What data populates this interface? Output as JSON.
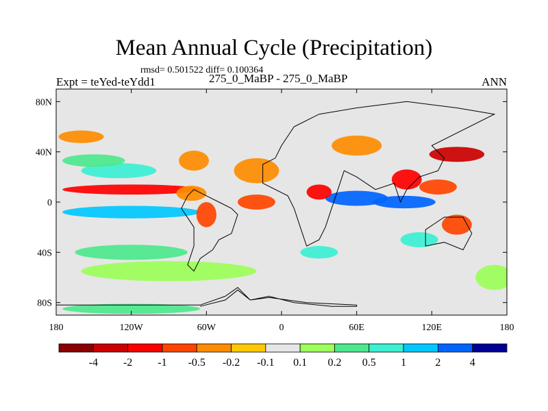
{
  "chart_data": {
    "type": "heatmap",
    "title": "Mean Annual Cycle (Precipitation)",
    "stats_line": "rmsd= 0.501522 diff= 0.100364",
    "left_label": "Expt = teYed-teYdd1",
    "center_label": "275_0_MaBP - 275_0_MaBP",
    "right_label": "ANN",
    "x_range": [
      -180,
      180
    ],
    "y_range": [
      -90,
      90
    ],
    "x_ticks": [
      {
        "value": -180,
        "label": "180"
      },
      {
        "value": -120,
        "label": "120W"
      },
      {
        "value": -60,
        "label": "60W"
      },
      {
        "value": 0,
        "label": "0"
      },
      {
        "value": 60,
        "label": "60E"
      },
      {
        "value": 120,
        "label": "120E"
      },
      {
        "value": 180,
        "label": "180"
      }
    ],
    "y_ticks": [
      {
        "value": 80,
        "label": "80N"
      },
      {
        "value": 40,
        "label": "40N"
      },
      {
        "value": 0,
        "label": "0"
      },
      {
        "value": -40,
        "label": "40S"
      },
      {
        "value": -80,
        "label": "80S"
      }
    ],
    "colorbar": {
      "colors": [
        "#8b0000",
        "#cc0000",
        "#ff0000",
        "#ff4500",
        "#ff8c00",
        "#ffc800",
        "#e6e6e6",
        "#9cff5a",
        "#4de88c",
        "#3cf0d2",
        "#00c8ff",
        "#0064ff",
        "#000096"
      ],
      "labels": [
        "-4",
        "-2",
        "-1",
        "-0.5",
        "-0.2",
        "-0.1",
        "0.1",
        "0.2",
        "0.5",
        "1",
        "2",
        "4"
      ]
    },
    "features": [
      {
        "lon": -120,
        "lat": 10,
        "rlon": 55,
        "rlat": 4,
        "level": 2
      },
      {
        "lon": -120,
        "lat": -8,
        "rlon": 55,
        "rlat": 5,
        "level": 10
      },
      {
        "lon": -130,
        "lat": 25,
        "rlon": 30,
        "rlat": 6,
        "level": 9
      },
      {
        "lon": -150,
        "lat": 33,
        "rlon": 25,
        "rlat": 5,
        "level": 8
      },
      {
        "lon": -70,
        "lat": 33,
        "rlon": 12,
        "rlat": 8,
        "level": 4
      },
      {
        "lon": -72,
        "lat": 7,
        "rlon": 12,
        "rlat": 6,
        "level": 4
      },
      {
        "lon": -60,
        "lat": -10,
        "rlon": 8,
        "rlat": 10,
        "level": 3
      },
      {
        "lon": -20,
        "lat": 25,
        "rlon": 18,
        "rlat": 10,
        "level": 4
      },
      {
        "lon": -20,
        "lat": 0,
        "rlon": 15,
        "rlat": 6,
        "level": 3
      },
      {
        "lon": 60,
        "lat": 3,
        "rlon": 25,
        "rlat": 6,
        "level": 11
      },
      {
        "lon": 98,
        "lat": 0,
        "rlon": 25,
        "rlat": 5,
        "level": 11
      },
      {
        "lon": 140,
        "lat": 38,
        "rlon": 22,
        "rlat": 6,
        "level": 1
      },
      {
        "lon": 100,
        "lat": 18,
        "rlon": 12,
        "rlat": 8,
        "level": 2
      },
      {
        "lon": 125,
        "lat": 12,
        "rlon": 15,
        "rlat": 6,
        "level": 3
      },
      {
        "lon": 30,
        "lat": 8,
        "rlon": 10,
        "rlat": 6,
        "level": 2
      },
      {
        "lon": 140,
        "lat": -18,
        "rlon": 12,
        "rlat": 8,
        "level": 3
      },
      {
        "lon": 110,
        "lat": -30,
        "rlon": 15,
        "rlat": 6,
        "level": 9
      },
      {
        "lon": -120,
        "lat": -40,
        "rlon": 45,
        "rlat": 6,
        "level": 8
      },
      {
        "lon": -90,
        "lat": -55,
        "rlon": 70,
        "rlat": 8,
        "level": 7
      },
      {
        "lon": -120,
        "lat": -85,
        "rlon": 55,
        "rlat": 4,
        "level": 8
      },
      {
        "lon": 60,
        "lat": 45,
        "rlon": 20,
        "rlat": 8,
        "level": 4
      },
      {
        "lon": -160,
        "lat": 52,
        "rlon": 18,
        "rlat": 5,
        "level": 4
      },
      {
        "lon": 30,
        "lat": -40,
        "rlon": 15,
        "rlat": 5,
        "level": 9
      },
      {
        "lon": 170,
        "lat": -60,
        "rlon": 15,
        "rlat": 10,
        "level": 7
      }
    ],
    "coastline": [
      [
        -65,
        -83
      ],
      [
        -45,
        -78
      ],
      [
        -35,
        -70
      ],
      [
        -25,
        -78
      ],
      [
        -10,
        -75
      ],
      [
        10,
        -80
      ],
      [
        40,
        -83
      ],
      [
        60,
        -83
      ],
      [
        60,
        -82
      ],
      [
        20,
        -80
      ],
      [
        -10,
        -76
      ],
      [
        -25,
        -78
      ],
      [
        -35,
        -68
      ],
      [
        -45,
        -75
      ],
      [
        -65,
        -82
      ],
      [
        -180,
        -82
      ]
    ],
    "americas": [
      [
        -70,
        10
      ],
      [
        -60,
        5
      ],
      [
        -50,
        0
      ],
      [
        -40,
        -5
      ],
      [
        -35,
        -10
      ],
      [
        -40,
        -25
      ],
      [
        -50,
        -30
      ],
      [
        -55,
        -38
      ],
      [
        -65,
        -45
      ],
      [
        -70,
        -55
      ],
      [
        -75,
        -50
      ],
      [
        -70,
        -35
      ],
      [
        -70,
        -20
      ],
      [
        -80,
        -5
      ],
      [
        -75,
        5
      ]
    ],
    "landmass": [
      [
        10,
        60
      ],
      [
        30,
        70
      ],
      [
        60,
        75
      ],
      [
        100,
        80
      ],
      [
        140,
        75
      ],
      [
        170,
        70
      ],
      [
        120,
        45
      ],
      [
        130,
        35
      ],
      [
        125,
        25
      ],
      [
        110,
        20
      ],
      [
        100,
        10
      ],
      [
        95,
        0
      ],
      [
        90,
        15
      ],
      [
        75,
        10
      ],
      [
        60,
        20
      ],
      [
        50,
        25
      ],
      [
        45,
        10
      ],
      [
        40,
        -5
      ],
      [
        35,
        -20
      ],
      [
        30,
        -30
      ],
      [
        20,
        -35
      ],
      [
        15,
        -20
      ],
      [
        10,
        -5
      ],
      [
        5,
        5
      ],
      [
        -15,
        15
      ],
      [
        -15,
        30
      ],
      [
        -5,
        35
      ],
      [
        0,
        45
      ]
    ],
    "australia": [
      [
        115,
        -22
      ],
      [
        130,
        -12
      ],
      [
        145,
        -12
      ],
      [
        152,
        -25
      ],
      [
        145,
        -38
      ],
      [
        130,
        -32
      ],
      [
        115,
        -35
      ]
    ]
  }
}
